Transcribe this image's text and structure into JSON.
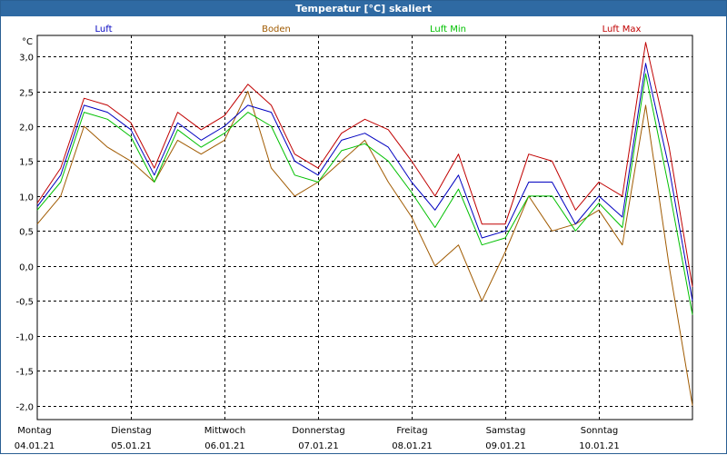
{
  "window": {
    "title": "Temperatur [°C] skaliert"
  },
  "colors": {
    "titlebar": "#2f6aa3",
    "grid": "#000000"
  },
  "chart_data": {
    "type": "line",
    "ylabel": "°C",
    "ylim": [
      -2.2,
      3.3
    ],
    "yticks": [
      3.0,
      2.5,
      2.0,
      1.5,
      1.0,
      0.5,
      0.0,
      -0.5,
      -1.0,
      -1.5,
      -2.0
    ],
    "ytick_labels": [
      "3,0",
      "2,5",
      "2,0",
      "1,5",
      "1,0",
      "0,5",
      "0,0",
      "-0,5",
      "-1,0",
      "-1,5",
      "-2,0"
    ],
    "grid": true,
    "legend_position": "top",
    "xlim": [
      0,
      7
    ],
    "days": [
      {
        "weekday": "Montag",
        "date": "04.01.21"
      },
      {
        "weekday": "Dienstag",
        "date": "05.01.21"
      },
      {
        "weekday": "Mittwoch",
        "date": "06.01.21"
      },
      {
        "weekday": "Donnerstag",
        "date": "07.01.21"
      },
      {
        "weekday": "Freitag",
        "date": "08.01.21"
      },
      {
        "weekday": "Samstag",
        "date": "09.01.21"
      },
      {
        "weekday": "Sonntag",
        "date": "10.01.21"
      }
    ],
    "x": [
      0,
      0.25,
      0.5,
      0.75,
      1,
      1.25,
      1.5,
      1.75,
      2,
      2.25,
      2.5,
      2.75,
      3,
      3.25,
      3.5,
      3.75,
      4,
      4.25,
      4.5,
      4.75,
      5,
      5.25,
      5.5,
      5.75,
      6,
      6.25,
      6.5,
      6.75,
      7
    ],
    "series": [
      {
        "name": "Luft",
        "color": "#0000c0",
        "values": [
          0.85,
          1.3,
          2.3,
          2.2,
          1.95,
          1.3,
          2.05,
          1.8,
          2.0,
          2.3,
          2.2,
          1.5,
          1.3,
          1.8,
          1.9,
          1.7,
          1.2,
          0.8,
          1.3,
          0.4,
          0.5,
          1.2,
          1.2,
          0.6,
          1.0,
          0.7,
          2.9,
          1.4,
          -0.5
        ]
      },
      {
        "name": "Boden",
        "color": "#a05a00",
        "values": [
          0.6,
          1.0,
          2.0,
          1.7,
          1.5,
          1.2,
          1.8,
          1.6,
          1.8,
          2.5,
          1.4,
          1.0,
          1.2,
          1.5,
          1.8,
          1.2,
          0.7,
          0.0,
          0.3,
          -0.5,
          0.2,
          1.0,
          0.5,
          0.6,
          0.8,
          0.3,
          2.3,
          0.0,
          -2.0
        ]
      },
      {
        "name": "Luft Min",
        "color": "#00c000",
        "values": [
          0.8,
          1.2,
          2.2,
          2.1,
          1.85,
          1.2,
          1.95,
          1.7,
          1.9,
          2.2,
          2.0,
          1.3,
          1.2,
          1.65,
          1.75,
          1.5,
          1.05,
          0.55,
          1.1,
          0.3,
          0.4,
          1.0,
          1.0,
          0.5,
          0.9,
          0.55,
          2.75,
          1.1,
          -0.7
        ]
      },
      {
        "name": "Luft Max",
        "color": "#c00000",
        "values": [
          0.9,
          1.4,
          2.4,
          2.3,
          2.05,
          1.4,
          2.2,
          1.95,
          2.15,
          2.6,
          2.3,
          1.6,
          1.4,
          1.9,
          2.1,
          1.95,
          1.5,
          1.0,
          1.6,
          0.6,
          0.6,
          1.6,
          1.5,
          0.8,
          1.2,
          1.0,
          3.2,
          1.7,
          -0.3
        ]
      }
    ]
  }
}
